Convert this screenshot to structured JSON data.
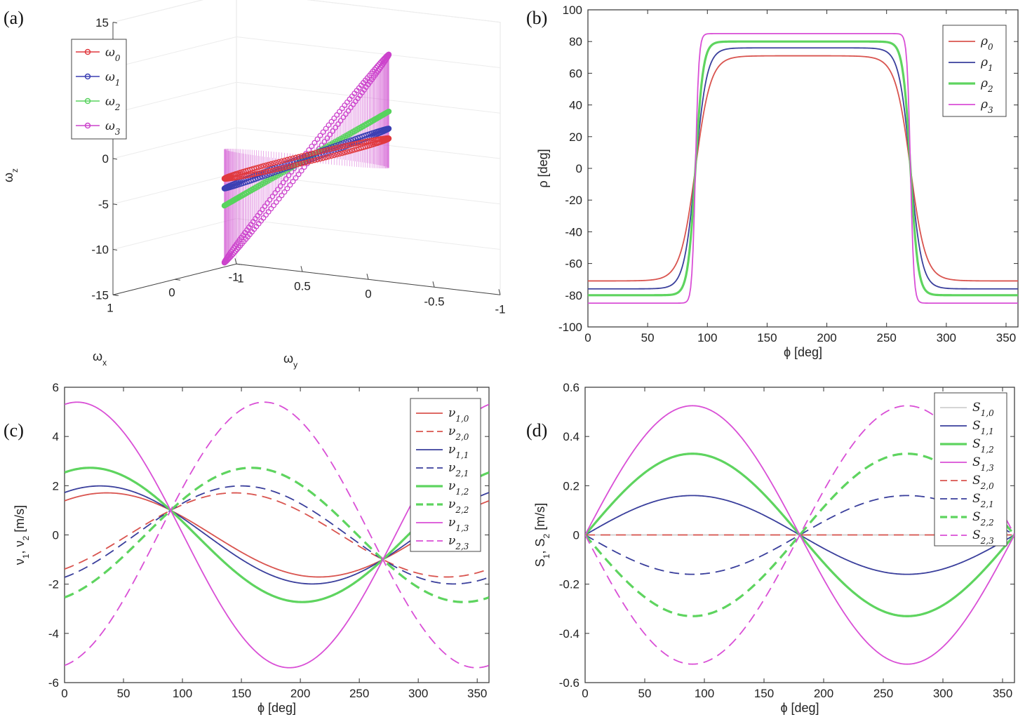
{
  "chart_data": [
    {
      "panel": "(a)",
      "type": "scatter",
      "three_d": true,
      "xlabel": "ω_x",
      "ylabel": "ω_y",
      "zlabel": "ω_z",
      "xticks": [
        "1",
        "0",
        "-1"
      ],
      "yticks": [
        "1",
        "0.5",
        "0",
        "-0.5",
        "-1"
      ],
      "zticks": [
        "15",
        "10",
        "5",
        "0",
        "-5",
        "-10",
        "-15"
      ],
      "zlim": [
        -15,
        15
      ],
      "legend_position": "top-left",
      "series": [
        {
          "name": "ω_0",
          "color": "#e0393e",
          "z_amplitude": 3.2
        },
        {
          "name": "ω_1",
          "color": "#3b3fb3",
          "z_amplitude": 4.3
        },
        {
          "name": "ω_2",
          "color": "#58d35e",
          "z_amplitude": 6.2
        },
        {
          "name": "ω_3",
          "color": "#cc44cc",
          "z_amplitude": 12.5
        }
      ]
    },
    {
      "panel": "(b)",
      "type": "line",
      "xlabel": "ϕ [deg]",
      "ylabel": "ρ [deg]",
      "xlim": [
        0,
        360
      ],
      "ylim": [
        -100,
        100
      ],
      "xticks": [
        0,
        50,
        100,
        150,
        200,
        250,
        300,
        350
      ],
      "yticks": [
        100,
        80,
        60,
        40,
        20,
        0,
        -20,
        -40,
        -60,
        -80,
        -100
      ],
      "legend_position": "top-right",
      "series": [
        {
          "name": "ρ_0",
          "color": "#d9544f",
          "amplitude": 71,
          "sharpness": 4.5
        },
        {
          "name": "ρ_1",
          "color": "#3a3f9c",
          "amplitude": 76,
          "sharpness": 6
        },
        {
          "name": "ρ_2",
          "color": "#5ed45f",
          "amplitude": 80,
          "sharpness": 9
        },
        {
          "name": "ρ_3",
          "color": "#d94fd6",
          "amplitude": 85,
          "sharpness": 20
        }
      ]
    },
    {
      "panel": "(c)",
      "type": "line",
      "xlabel": "ϕ [deg]",
      "ylabel": "ν_1, ν_2 [m/s]",
      "xlim": [
        0,
        360
      ],
      "ylim": [
        -6,
        6
      ],
      "xticks": [
        0,
        50,
        100,
        150,
        200,
        250,
        300,
        350
      ],
      "yticks": [
        6,
        4,
        2,
        0,
        -2,
        -4,
        -6
      ],
      "legend_position": "top-right",
      "series": [
        {
          "name": "ν_1,0",
          "color": "#d9544f",
          "dashed": false,
          "amplitude": 1.6,
          "peak_deg": 30
        },
        {
          "name": "ν_2,0",
          "color": "#d9544f",
          "dashed": true,
          "amplitude": 1.6,
          "peak_deg": 150
        },
        {
          "name": "ν_1,1",
          "color": "#3a3f9c",
          "dashed": false,
          "amplitude": 1.95,
          "peak_deg": 28
        },
        {
          "name": "ν_2,1",
          "color": "#3a3f9c",
          "dashed": true,
          "amplitude": 1.95,
          "peak_deg": 152
        },
        {
          "name": "ν_1,2",
          "color": "#5ed45f",
          "dashed": false,
          "amplitude": 2.7,
          "peak_deg": 20
        },
        {
          "name": "ν_2,2",
          "color": "#5ed45f",
          "dashed": true,
          "amplitude": 2.7,
          "peak_deg": 160
        },
        {
          "name": "ν_1,3",
          "color": "#d94fd6",
          "dashed": false,
          "amplitude": 5.4,
          "peak_deg": 11
        },
        {
          "name": "ν_2,3",
          "color": "#d94fd6",
          "dashed": true,
          "amplitude": 5.4,
          "peak_deg": 169
        }
      ]
    },
    {
      "panel": "(d)",
      "type": "line",
      "xlabel": "ϕ [deg]",
      "ylabel": "S_1, S_2 [m/s]",
      "xlim": [
        0,
        360
      ],
      "ylim": [
        -0.6,
        0.6
      ],
      "xticks": [
        0,
        50,
        100,
        150,
        200,
        250,
        300,
        350
      ],
      "yticks": [
        0.6,
        0.4,
        0.2,
        0,
        -0.2,
        -0.4,
        -0.6
      ],
      "legend_position": "top-right",
      "series": [
        {
          "name": "S_1,0",
          "color": "#cfcfcf",
          "dashed": false,
          "amplitude": 0,
          "sign": 1
        },
        {
          "name": "S_1,1",
          "color": "#3a3f9c",
          "dashed": false,
          "amplitude": 0.16,
          "sign": 1
        },
        {
          "name": "S_1,2",
          "color": "#5ed45f",
          "dashed": false,
          "amplitude": 0.33,
          "sign": 1
        },
        {
          "name": "S_1,3",
          "color": "#d94fd6",
          "dashed": false,
          "amplitude": 0.525,
          "sign": 1
        },
        {
          "name": "S_2,0",
          "color": "#d9544f",
          "dashed": true,
          "amplitude": 0,
          "sign": -1
        },
        {
          "name": "S_2,1",
          "color": "#3a3f9c",
          "dashed": true,
          "amplitude": 0.16,
          "sign": -1
        },
        {
          "name": "S_2,2",
          "color": "#5ed45f",
          "dashed": true,
          "amplitude": 0.33,
          "sign": -1
        },
        {
          "name": "S_2,3",
          "color": "#d94fd6",
          "dashed": true,
          "amplitude": 0.525,
          "sign": -1
        }
      ]
    }
  ]
}
